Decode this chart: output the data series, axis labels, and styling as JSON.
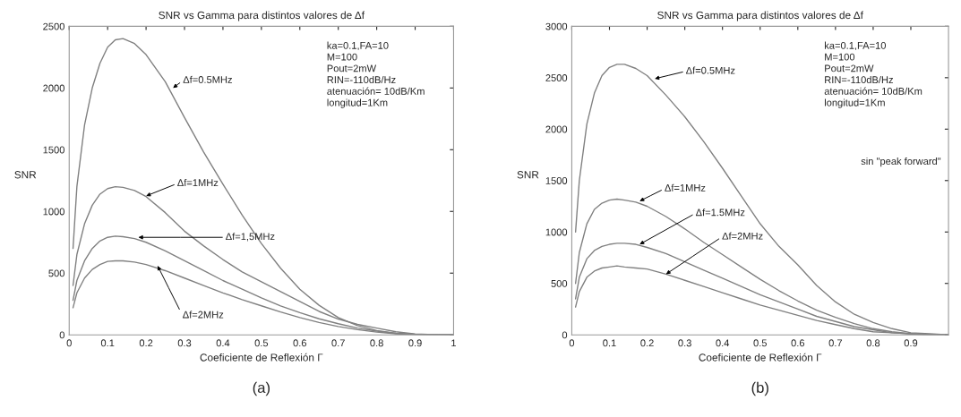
{
  "chart_data": [
    {
      "type": "line",
      "title": "SNR vs Gamma para distintos valores de Δf",
      "xlabel": "Coeficiente de Reflexión Γ",
      "ylabel": "SNR",
      "x": [
        0.01,
        0.02,
        0.04,
        0.06,
        0.08,
        0.1,
        0.12,
        0.14,
        0.17,
        0.2,
        0.25,
        0.3,
        0.35,
        0.4,
        0.45,
        0.5,
        0.55,
        0.6,
        0.65,
        0.7,
        0.75,
        0.8,
        0.85,
        0.9,
        0.95,
        1
      ],
      "series": [
        {
          "color": "#808080",
          "values": [
            700,
            1200,
            1700,
            2000,
            2200,
            2330,
            2390,
            2400,
            2360,
            2270,
            2050,
            1760,
            1480,
            1220,
            970,
            740,
            540,
            370,
            240,
            140,
            75,
            35,
            12,
            3,
            0,
            0
          ]
        },
        {
          "color": "#808080",
          "values": [
            400,
            650,
            900,
            1050,
            1140,
            1185,
            1200,
            1195,
            1170,
            1120,
            990,
            840,
            720,
            610,
            510,
            430,
            350,
            270,
            190,
            128,
            85,
            55,
            25,
            8,
            2,
            0
          ]
        },
        {
          "color": "#808080",
          "values": [
            280,
            440,
            600,
            700,
            760,
            790,
            800,
            795,
            780,
            750,
            680,
            600,
            520,
            440,
            370,
            300,
            235,
            180,
            130,
            90,
            55,
            30,
            12,
            4,
            1,
            0
          ]
        },
        {
          "color": "#808080",
          "values": [
            220,
            340,
            460,
            530,
            570,
            595,
            600,
            600,
            590,
            570,
            520,
            460,
            400,
            340,
            285,
            235,
            185,
            140,
            100,
            68,
            42,
            22,
            9,
            3,
            1,
            0
          ]
        }
      ],
      "xlim": [
        0,
        1
      ],
      "ylim": [
        0,
        2500
      ],
      "xticks": [
        0,
        0.1,
        0.2,
        0.3,
        0.4,
        0.5,
        0.6,
        0.7,
        0.8,
        0.9,
        1
      ],
      "yticks": [
        0,
        500,
        1000,
        1500,
        2000,
        2500
      ],
      "grid": false,
      "line_style": "solid",
      "marker": "none",
      "annotations": [
        "ka=0.1,FA=10\nM=100\nPout=2mW\nRIN=-110dB/Hz\natenuación= 10dB/Km\nlongitud=1Km",
        {
          "text": "Δf=0.5MHz",
          "x": 0.27,
          "y": 2000
        },
        {
          "text": "Δf=1MHz",
          "x": 0.2,
          "y": 1125
        },
        {
          "text": "Δf=1,5MHz",
          "x": 0.18,
          "y": 790
        },
        {
          "text": "Δf=2MHz",
          "x": 0.23,
          "y": 560
        },
        "(a)"
      ]
    },
    {
      "type": "line",
      "title": "SNR vs Gamma para distintos valores de Δf",
      "xlabel": "Coeficiente de Reflexión Γ",
      "ylabel": "SNR",
      "x": [
        0.01,
        0.02,
        0.04,
        0.06,
        0.08,
        0.1,
        0.12,
        0.14,
        0.17,
        0.2,
        0.25,
        0.3,
        0.35,
        0.4,
        0.45,
        0.5,
        0.55,
        0.6,
        0.65,
        0.7,
        0.75,
        0.8,
        0.85,
        0.9,
        0.95,
        1
      ],
      "series": [
        {
          "color": "#808080",
          "values": [
            1000,
            1500,
            2050,
            2350,
            2520,
            2600,
            2630,
            2630,
            2590,
            2520,
            2330,
            2120,
            1880,
            1620,
            1350,
            1080,
            860,
            680,
            480,
            320,
            200,
            120,
            60,
            20,
            10,
            0
          ]
        },
        {
          "color": "#808080",
          "values": [
            500,
            800,
            1080,
            1220,
            1280,
            1310,
            1320,
            1310,
            1290,
            1250,
            1150,
            1030,
            900,
            780,
            660,
            540,
            430,
            330,
            240,
            170,
            110,
            60,
            30,
            10,
            0,
            0
          ]
        },
        {
          "color": "#808080",
          "values": [
            350,
            560,
            740,
            820,
            860,
            880,
            890,
            890,
            880,
            850,
            790,
            710,
            630,
            550,
            470,
            390,
            320,
            250,
            180,
            130,
            80,
            50,
            20,
            10,
            0,
            0
          ]
        },
        {
          "color": "#808080",
          "values": [
            270,
            420,
            560,
            620,
            650,
            660,
            670,
            660,
            650,
            640,
            590,
            530,
            470,
            410,
            350,
            290,
            240,
            190,
            140,
            100,
            60,
            30,
            20,
            10,
            0,
            0
          ]
        }
      ],
      "xlim": [
        0,
        1
      ],
      "ylim": [
        0,
        3000
      ],
      "xticks": [
        0,
        0.1,
        0.2,
        0.3,
        0.4,
        0.5,
        0.6,
        0.7,
        0.8,
        0.9
      ],
      "yticks": [
        0,
        500,
        1000,
        1500,
        2000,
        2500,
        3000
      ],
      "grid": false,
      "line_style": "solid",
      "marker": "none",
      "annotations": [
        "ka=0.1,FA=10\nM=100\nPout=2mW\nRIN=-110dB/Hz\natenuación= 10dB/Km\nlongitud=1Km",
        {
          "text": "Δf=0.5MHz",
          "x": 0.22,
          "y": 2490
        },
        {
          "text": "Δf=1MHz",
          "x": 0.18,
          "y": 1300
        },
        {
          "text": "Δf=1.5MHz",
          "x": 0.18,
          "y": 880
        },
        {
          "text": "Δf=2MHz",
          "x": 0.25,
          "y": 590
        },
        "sin \"peak forward\"",
        "(b)"
      ]
    }
  ]
}
